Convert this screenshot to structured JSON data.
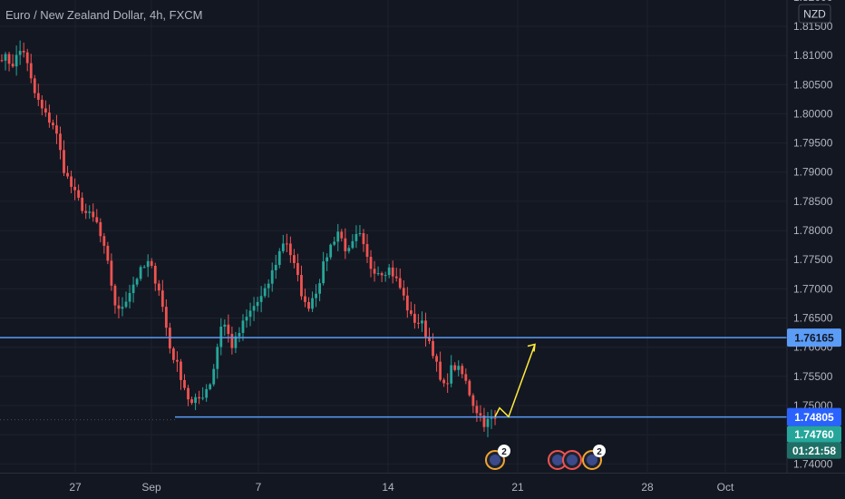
{
  "header": {
    "title": "Euro / New Zealand Dollar, 4h, FXCM",
    "currency_badge": "NZD"
  },
  "chart_data": {
    "type": "candlestick",
    "instrument": "Euro / New Zealand Dollar",
    "timeframe": "4h",
    "source": "FXCM",
    "ylim": [
      1.7385,
      1.8195
    ],
    "y_ticks": [
      "1.74000",
      "1.74500",
      "1.75000",
      "1.75500",
      "1.76000",
      "1.76500",
      "1.77000",
      "1.77500",
      "1.78000",
      "1.78500",
      "1.79000",
      "1.79500",
      "1.80000",
      "1.80500",
      "1.81000",
      "1.81500",
      "1.82000"
    ],
    "x_ticks": [
      "27",
      "Sep",
      "7",
      "14",
      "21",
      "28",
      "Oct"
    ],
    "horizontal_lines": [
      {
        "price": 1.76165,
        "label": "1.76165",
        "color": "#5b9cf6"
      },
      {
        "price": 1.74805,
        "label": "1.74805",
        "color": "#5b9cf6"
      }
    ],
    "current_price": {
      "label": "1.74760",
      "countdown": "01:21:58",
      "color": "#26a69a"
    },
    "projection": {
      "color": "#ffeb3b",
      "points": [
        [
          1.7472,
          1.7481
        ],
        [
          1.7505,
          1.7496
        ],
        [
          1.7482,
          1.7481
        ],
        [
          1.7605,
          1.7605
        ]
      ]
    },
    "events": [
      {
        "kind": "single",
        "badge": "2"
      },
      {
        "kind": "group",
        "badge": "2"
      }
    ],
    "colors": {
      "up": "#26a69a",
      "down": "#ef5350",
      "background": "#131722"
    },
    "waypoints": [
      1.81,
      1.8085,
      1.8115,
      1.804,
      1.8,
      1.798,
      1.79,
      1.786,
      1.783,
      1.7815,
      1.775,
      1.7655,
      1.769,
      1.7725,
      1.7745,
      1.77,
      1.76,
      1.7555,
      1.75,
      1.7515,
      1.7545,
      1.765,
      1.76,
      1.764,
      1.767,
      1.769,
      1.774,
      1.779,
      1.773,
      1.7665,
      1.77,
      1.776,
      1.78,
      1.776,
      1.7795,
      1.774,
      1.773,
      1.7735,
      1.77,
      1.765,
      1.764,
      1.76,
      1.7525,
      1.757,
      1.755,
      1.75,
      1.747,
      1.7478
    ]
  }
}
